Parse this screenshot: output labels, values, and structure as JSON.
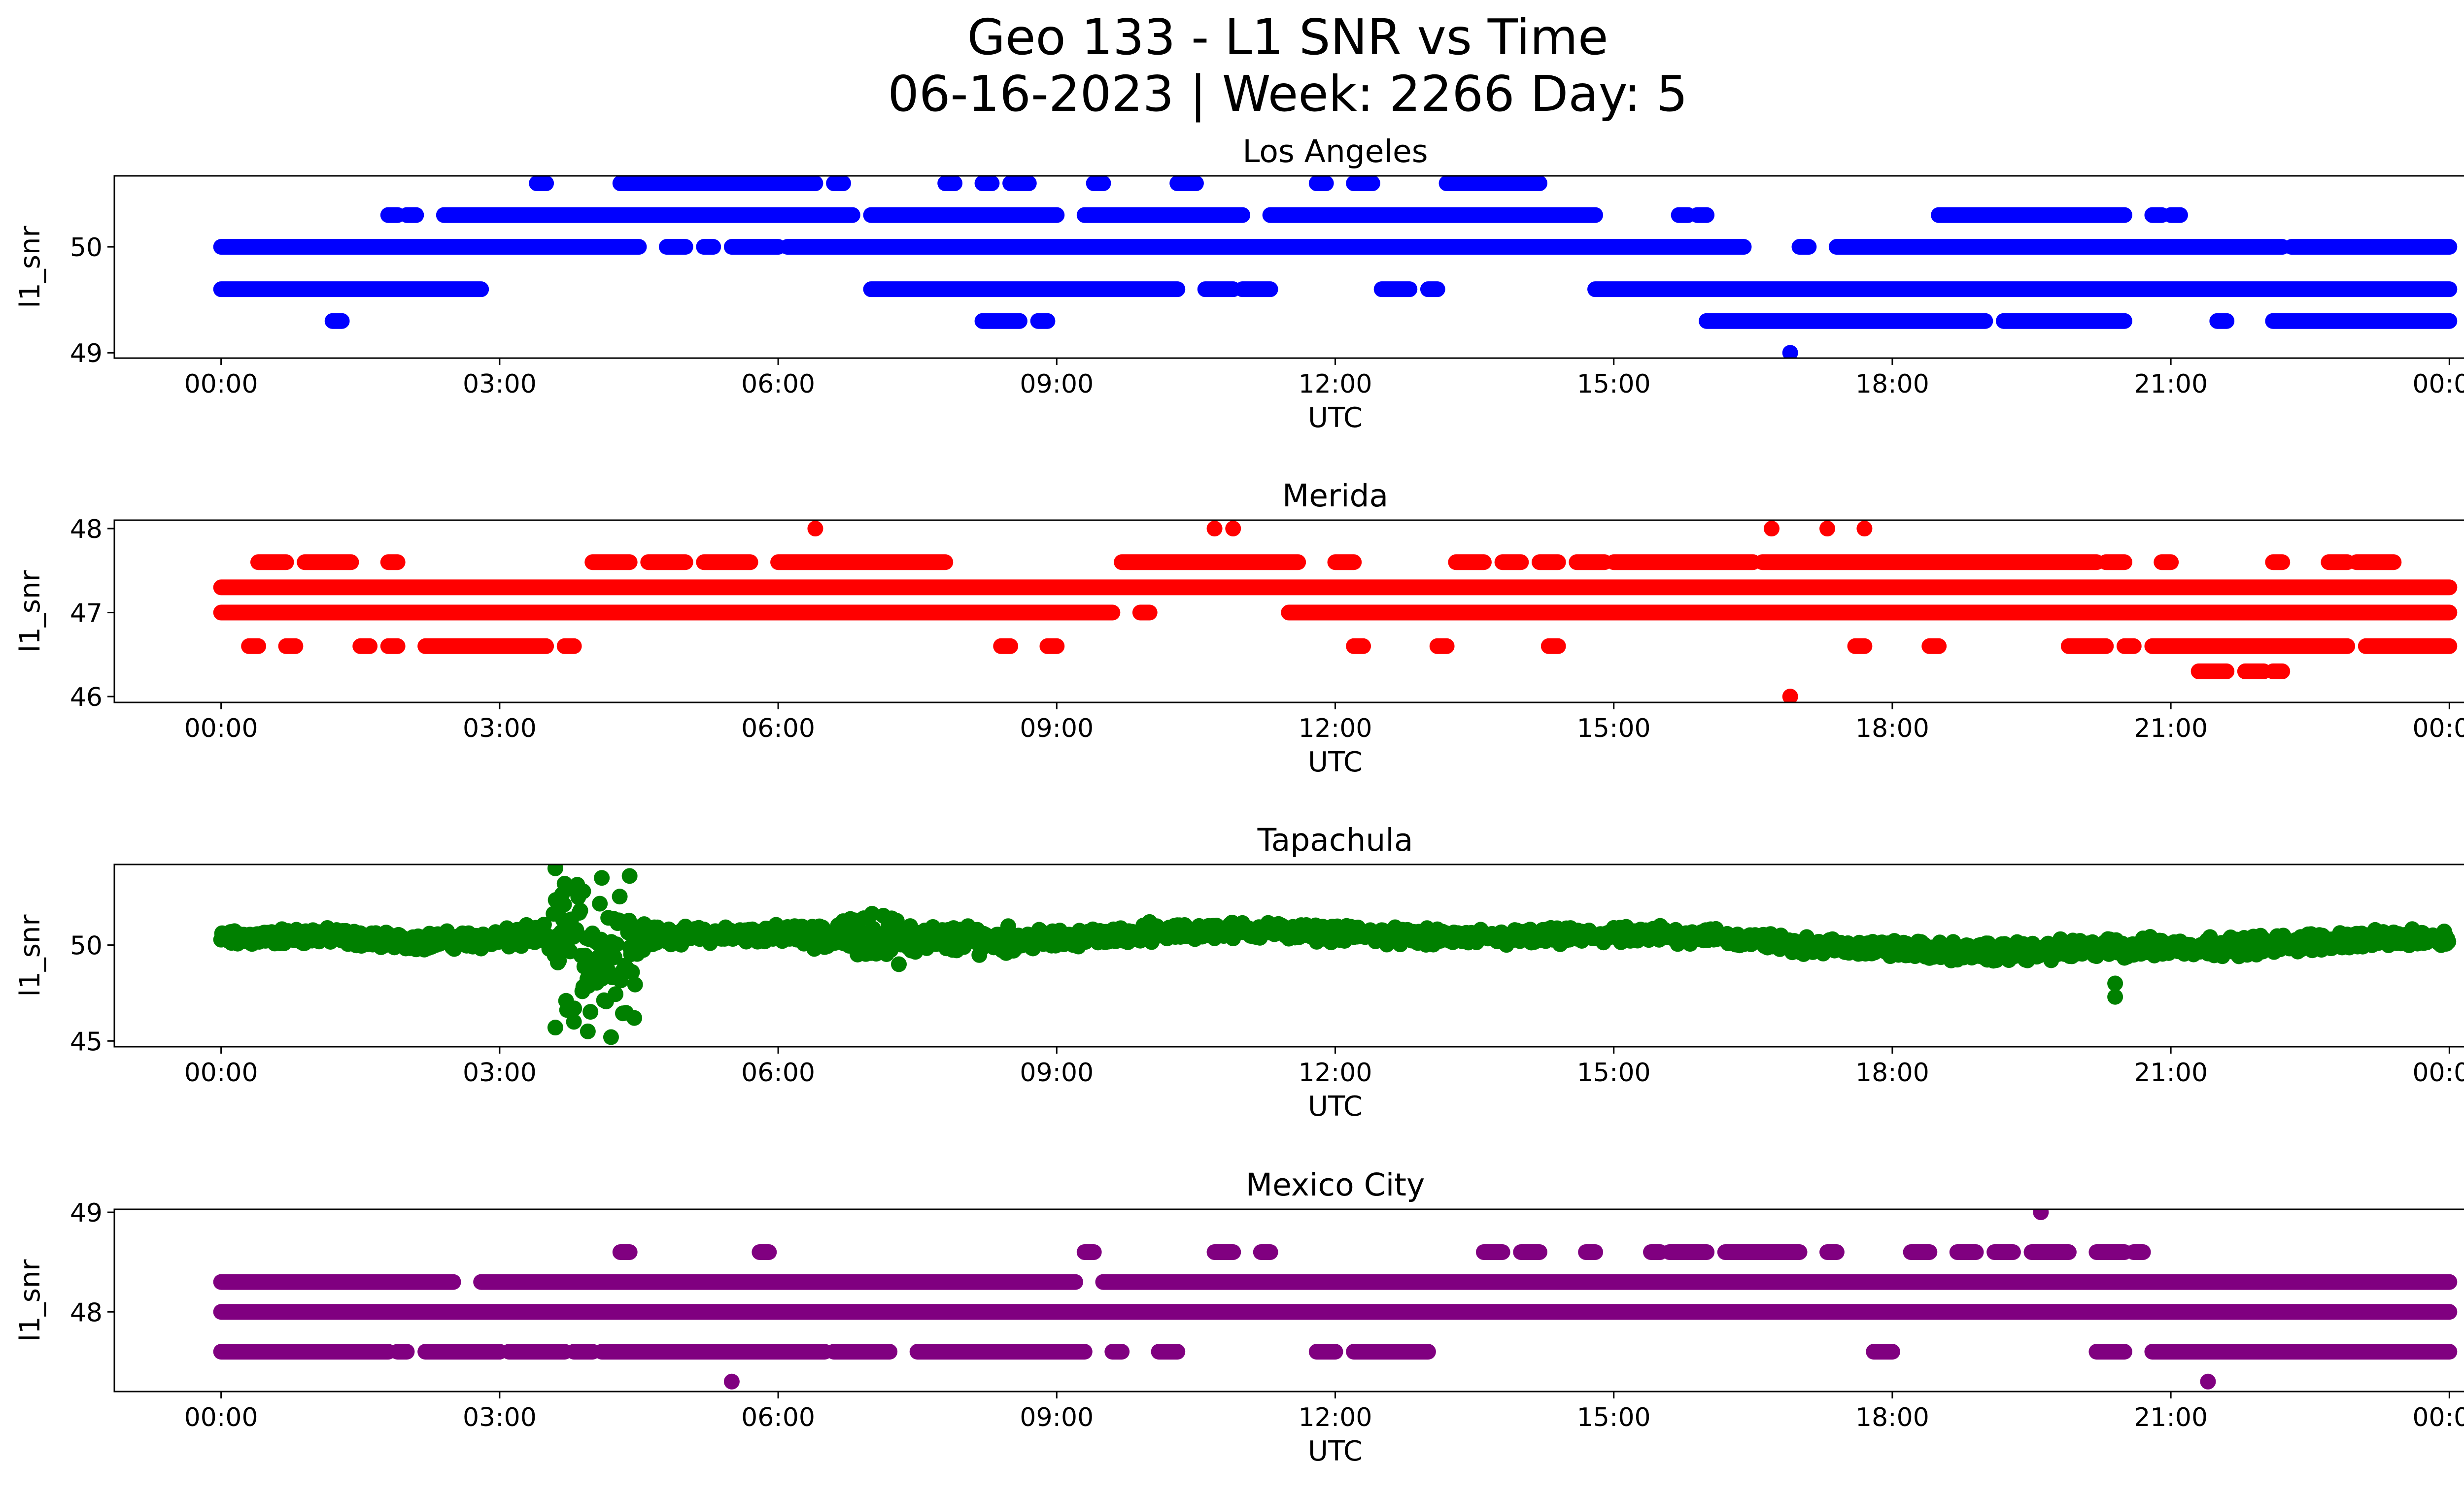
{
  "title_line1": "Geo 133 - L1 SNR vs Time",
  "title_line2": "06-16-2023 | Week: 2266 Day: 5",
  "chart_data": [
    {
      "type": "scatter",
      "title": "Los Angeles",
      "xlabel": "UTC",
      "ylabel": "l1_snr",
      "color": "#0000ff",
      "x_unit": "hours UTC",
      "xlim": [
        -1.15,
        25.15
      ],
      "ylim": [
        48.95,
        50.67
      ],
      "xticks": [
        "00:00",
        "03:00",
        "06:00",
        "09:00",
        "12:00",
        "15:00",
        "18:00",
        "21:00",
        "00:00"
      ],
      "yticks": [
        49,
        50
      ],
      "bands": [
        {
          "y": 50.6,
          "segments": [
            [
              3.4,
              3.5
            ],
            [
              4.3,
              6.4
            ],
            [
              6.6,
              6.7
            ],
            [
              7.8,
              7.9
            ],
            [
              8.2,
              8.3
            ],
            [
              8.5,
              8.7
            ],
            [
              9.4,
              9.5
            ],
            [
              10.3,
              10.5
            ],
            [
              11.8,
              11.9
            ],
            [
              12.2,
              12.4
            ],
            [
              13.2,
              14.2
            ]
          ]
        },
        {
          "y": 50.3,
          "segments": [
            [
              1.8,
              1.9
            ],
            [
              2.0,
              2.1
            ],
            [
              2.4,
              6.8
            ],
            [
              7.0,
              9.0
            ],
            [
              9.3,
              11.0
            ],
            [
              11.3,
              14.8
            ],
            [
              15.7,
              15.8
            ],
            [
              15.9,
              16.0
            ],
            [
              18.5,
              20.5
            ],
            [
              20.8,
              20.9
            ],
            [
              21.0,
              21.1
            ]
          ]
        },
        {
          "y": 50.0,
          "segments": [
            [
              0,
              4.5
            ],
            [
              4.8,
              5.0
            ],
            [
              5.2,
              5.3
            ],
            [
              5.5,
              6.0
            ],
            [
              6.1,
              16.4
            ],
            [
              17.0,
              17.1
            ],
            [
              17.4,
              22.2
            ],
            [
              22.3,
              24.0
            ]
          ]
        },
        {
          "y": 49.6,
          "segments": [
            [
              0,
              2.8
            ],
            [
              7.0,
              10.3
            ],
            [
              10.6,
              10.9
            ],
            [
              11.0,
              11.3
            ],
            [
              12.5,
              12.8
            ],
            [
              13.0,
              13.1
            ],
            [
              14.8,
              24.0
            ]
          ]
        },
        {
          "y": 49.3,
          "segments": [
            [
              1.2,
              1.3
            ],
            [
              8.2,
              8.6
            ],
            [
              8.8,
              8.9
            ],
            [
              16.0,
              19.0
            ],
            [
              19.2,
              20.5
            ],
            [
              21.5,
              21.6
            ],
            [
              22.1,
              24.0
            ]
          ]
        }
      ],
      "points": [
        {
          "x": 16.9,
          "y": 49.0
        }
      ]
    },
    {
      "type": "scatter",
      "title": "Merida",
      "xlabel": "UTC",
      "ylabel": "l1_snr",
      "color": "#ff0000",
      "x_unit": "hours UTC",
      "xlim": [
        -1.15,
        25.15
      ],
      "ylim": [
        45.93,
        48.1
      ],
      "xticks": [
        "00:00",
        "03:00",
        "06:00",
        "09:00",
        "12:00",
        "15:00",
        "18:00",
        "21:00",
        "00:00"
      ],
      "yticks": [
        46,
        47,
        48
      ],
      "bands": [
        {
          "y": 47.6,
          "segments": [
            [
              0.4,
              0.7
            ],
            [
              0.9,
              1.4
            ],
            [
              1.8,
              1.9
            ],
            [
              4.0,
              4.4
            ],
            [
              4.6,
              5.0
            ],
            [
              5.2,
              5.7
            ],
            [
              6.0,
              7.8
            ],
            [
              9.7,
              11.6
            ],
            [
              12.0,
              12.2
            ],
            [
              13.3,
              13.6
            ],
            [
              13.8,
              14.0
            ],
            [
              14.2,
              14.4
            ],
            [
              14.6,
              14.9
            ],
            [
              15.0,
              16.5
            ],
            [
              16.6,
              20.2
            ],
            [
              20.3,
              20.5
            ],
            [
              20.9,
              21.0
            ],
            [
              22.1,
              22.2
            ],
            [
              22.7,
              22.9
            ],
            [
              23.0,
              23.4
            ]
          ]
        },
        {
          "y": 47.3,
          "segments": [
            [
              0,
              24.0
            ]
          ]
        },
        {
          "y": 47.0,
          "segments": [
            [
              0,
              9.6
            ],
            [
              9.9,
              10.0
            ],
            [
              11.5,
              24.0
            ]
          ]
        },
        {
          "y": 46.6,
          "segments": [
            [
              0.3,
              0.4
            ],
            [
              0.7,
              0.8
            ],
            [
              1.5,
              1.6
            ],
            [
              1.8,
              1.9
            ],
            [
              2.2,
              3.5
            ],
            [
              3.7,
              3.8
            ],
            [
              8.4,
              8.5
            ],
            [
              8.9,
              9.0
            ],
            [
              12.2,
              12.3
            ],
            [
              13.1,
              13.2
            ],
            [
              14.3,
              14.4
            ],
            [
              17.6,
              17.7
            ],
            [
              18.4,
              18.5
            ],
            [
              19.9,
              20.3
            ],
            [
              20.5,
              20.6
            ],
            [
              20.8,
              22.9
            ],
            [
              23.1,
              24.0
            ]
          ]
        },
        {
          "y": 46.3,
          "segments": [
            [
              21.3,
              21.6
            ],
            [
              21.8,
              22.0
            ],
            [
              22.1,
              22.2
            ]
          ]
        }
      ],
      "points": [
        {
          "x": 6.4,
          "y": 48.0
        },
        {
          "x": 10.7,
          "y": 48.0
        },
        {
          "x": 10.9,
          "y": 48.0
        },
        {
          "x": 16.7,
          "y": 48.0
        },
        {
          "x": 17.3,
          "y": 48.0
        },
        {
          "x": 17.7,
          "y": 48.0
        },
        {
          "x": 16.9,
          "y": 46.0
        }
      ]
    },
    {
      "type": "scatter",
      "title": "Tapachula",
      "xlabel": "UTC",
      "ylabel": "l1_snr",
      "color": "#008000",
      "x_unit": "hours UTC",
      "xlim": [
        -1.15,
        25.15
      ],
      "ylim": [
        44.7,
        54.2
      ],
      "xticks": [
        "00:00",
        "03:00",
        "06:00",
        "09:00",
        "12:00",
        "15:00",
        "18:00",
        "21:00",
        "00:00"
      ],
      "yticks": [
        45,
        50
      ],
      "trace": [
        [
          0.0,
          50.3,
          0.5
        ],
        [
          1.0,
          50.5,
          0.5
        ],
        [
          2.0,
          50.2,
          0.5
        ],
        [
          3.0,
          50.3,
          0.6
        ],
        [
          3.5,
          50.5,
          0.7
        ],
        [
          3.65,
          50.0,
          4.2
        ],
        [
          4.0,
          49.8,
          4.4
        ],
        [
          4.35,
          50.0,
          4.0
        ],
        [
          4.6,
          50.5,
          0.6
        ],
        [
          5.0,
          50.5,
          0.5
        ],
        [
          6.0,
          50.6,
          0.5
        ],
        [
          6.5,
          50.4,
          0.8
        ],
        [
          7.0,
          50.6,
          1.3
        ],
        [
          7.6,
          50.3,
          0.9
        ],
        [
          8.5,
          50.3,
          0.8
        ],
        [
          9.0,
          50.3,
          0.5
        ],
        [
          10.0,
          50.6,
          0.5
        ],
        [
          11.0,
          50.8,
          0.5
        ],
        [
          12.0,
          50.6,
          0.5
        ],
        [
          13.0,
          50.4,
          0.5
        ],
        [
          14.0,
          50.4,
          0.5
        ],
        [
          15.0,
          50.5,
          0.5
        ],
        [
          16.0,
          50.5,
          0.5
        ],
        [
          17.0,
          50.0,
          0.5
        ],
        [
          18.0,
          49.8,
          0.5
        ],
        [
          19.0,
          49.6,
          0.6
        ],
        [
          20.0,
          49.8,
          0.6
        ],
        [
          21.0,
          49.9,
          0.6
        ],
        [
          22.0,
          50.0,
          0.6
        ],
        [
          23.0,
          50.3,
          0.5
        ],
        [
          24.0,
          50.4,
          0.5
        ]
      ],
      "points": [
        {
          "x": 3.6,
          "y": 54.0
        },
        {
          "x": 3.7,
          "y": 53.2
        },
        {
          "x": 3.9,
          "y": 52.8
        },
        {
          "x": 4.1,
          "y": 53.5
        },
        {
          "x": 4.4,
          "y": 53.6
        },
        {
          "x": 3.6,
          "y": 45.7
        },
        {
          "x": 3.8,
          "y": 46.0
        },
        {
          "x": 3.95,
          "y": 45.5
        },
        {
          "x": 4.2,
          "y": 45.2
        },
        {
          "x": 4.45,
          "y": 46.2
        },
        {
          "x": 20.4,
          "y": 48.0
        },
        {
          "x": 20.4,
          "y": 47.3
        },
        {
          "x": 7.3,
          "y": 49.0
        },
        {
          "x": 10.0,
          "y": 51.2
        },
        {
          "x": 15.5,
          "y": 51.0
        }
      ]
    },
    {
      "type": "scatter",
      "title": "Mexico City",
      "xlabel": "UTC",
      "ylabel": "l1_snr",
      "color": "#800080",
      "x_unit": "hours UTC",
      "xlim": [
        -1.15,
        25.15
      ],
      "ylim": [
        47.2,
        49.03
      ],
      "xticks": [
        "00:00",
        "03:00",
        "06:00",
        "09:00",
        "12:00",
        "15:00",
        "18:00",
        "21:00",
        "00:00"
      ],
      "yticks": [
        48,
        49
      ],
      "bands": [
        {
          "y": 48.6,
          "segments": [
            [
              4.3,
              4.4
            ],
            [
              5.8,
              5.9
            ],
            [
              9.3,
              9.4
            ],
            [
              10.7,
              10.9
            ],
            [
              11.2,
              11.3
            ],
            [
              13.6,
              13.8
            ],
            [
              14.0,
              14.2
            ],
            [
              14.7,
              14.8
            ],
            [
              15.4,
              15.5
            ],
            [
              15.6,
              16.0
            ],
            [
              16.2,
              17.0
            ],
            [
              17.3,
              17.4
            ],
            [
              18.2,
              18.4
            ],
            [
              18.7,
              18.9
            ],
            [
              19.1,
              19.3
            ],
            [
              19.5,
              19.9
            ],
            [
              20.2,
              20.5
            ],
            [
              20.6,
              20.7
            ]
          ]
        },
        {
          "y": 48.3,
          "segments": [
            [
              0,
              2.5
            ],
            [
              2.8,
              9.2
            ],
            [
              9.5,
              24.0
            ]
          ]
        },
        {
          "y": 48.0,
          "segments": [
            [
              0,
              24.0
            ]
          ]
        },
        {
          "y": 47.6,
          "segments": [
            [
              0,
              1.8
            ],
            [
              1.9,
              2.0
            ],
            [
              2.2,
              3.0
            ],
            [
              3.1,
              3.7
            ],
            [
              3.8,
              4.0
            ],
            [
              4.1,
              6.5
            ],
            [
              6.6,
              7.2
            ],
            [
              7.5,
              9.3
            ],
            [
              9.6,
              9.7
            ],
            [
              10.1,
              10.3
            ],
            [
              11.8,
              12.0
            ],
            [
              12.2,
              13.0
            ],
            [
              17.8,
              18.0
            ],
            [
              20.2,
              20.5
            ],
            [
              20.8,
              24.0
            ]
          ]
        }
      ],
      "points": [
        {
          "x": 19.6,
          "y": 49.0
        },
        {
          "x": 5.5,
          "y": 47.3
        },
        {
          "x": 21.4,
          "y": 47.3
        }
      ]
    }
  ]
}
